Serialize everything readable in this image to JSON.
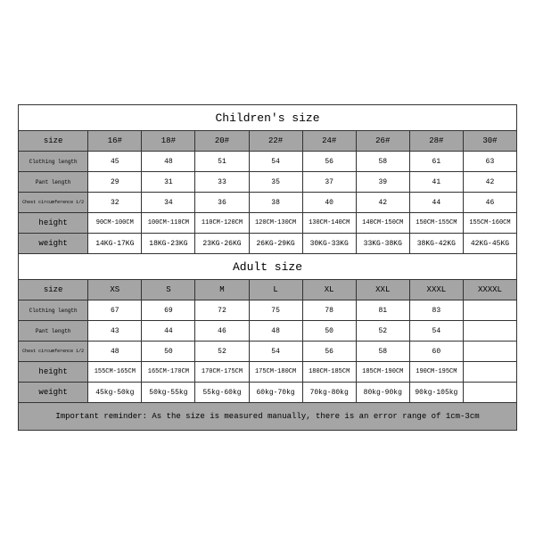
{
  "children": {
    "title": "Children's size",
    "size_header": "size",
    "cols": [
      "16#",
      "18#",
      "20#",
      "22#",
      "24#",
      "26#",
      "28#",
      "30#"
    ],
    "rows": [
      {
        "label": "Clothing length",
        "vals": [
          "45",
          "48",
          "51",
          "54",
          "56",
          "58",
          "61",
          "63"
        ]
      },
      {
        "label": "Pant length",
        "vals": [
          "29",
          "31",
          "33",
          "35",
          "37",
          "39",
          "41",
          "42"
        ]
      },
      {
        "label": "Chest circumference 1/2",
        "vals": [
          "32",
          "34",
          "36",
          "38",
          "40",
          "42",
          "44",
          "46"
        ]
      },
      {
        "label": "height",
        "vals": [
          "90CM-100CM",
          "100CM-110CM",
          "110CM-120CM",
          "120CM-130CM",
          "130CM-140CM",
          "140CM-150CM",
          "150CM-155CM",
          "155CM-160CM"
        ]
      },
      {
        "label": "weight",
        "vals": [
          "14KG-17KG",
          "18KG-23KG",
          "23KG-26KG",
          "26KG-29KG",
          "30KG-33KG",
          "33KG-38KG",
          "38KG-42KG",
          "42KG-45KG"
        ]
      }
    ]
  },
  "adult": {
    "title": "Adult size",
    "size_header": "size",
    "cols": [
      "XS",
      "S",
      "M",
      "L",
      "XL",
      "XXL",
      "XXXL",
      "XXXXL"
    ],
    "rows": [
      {
        "label": "Clothing length",
        "vals": [
          "67",
          "69",
          "72",
          "75",
          "78",
          "81",
          "83",
          ""
        ]
      },
      {
        "label": "Pant length",
        "vals": [
          "43",
          "44",
          "46",
          "48",
          "50",
          "52",
          "54",
          ""
        ]
      },
      {
        "label": "Chest circumference 1/2",
        "vals": [
          "48",
          "50",
          "52",
          "54",
          "56",
          "58",
          "60",
          ""
        ]
      },
      {
        "label": "height",
        "vals": [
          "155CM-165CM",
          "165CM-170CM",
          "170CM-175CM",
          "175CM-180CM",
          "180CM-185CM",
          "185CM-190CM",
          "190CM-195CM",
          ""
        ]
      },
      {
        "label": "weight",
        "vals": [
          "45kg-50kg",
          "50kg-55kg",
          "55kg-60kg",
          "60kg-70kg",
          "70kg-80kg",
          "80kg-90kg",
          "90kg-105kg",
          ""
        ]
      }
    ]
  },
  "note": "Important reminder: As the size is measured manually, there is an error range of 1cm-3cm",
  "colors": {
    "header_bg": "#a5a5a5",
    "border": "#333333",
    "bg": "#ffffff"
  }
}
